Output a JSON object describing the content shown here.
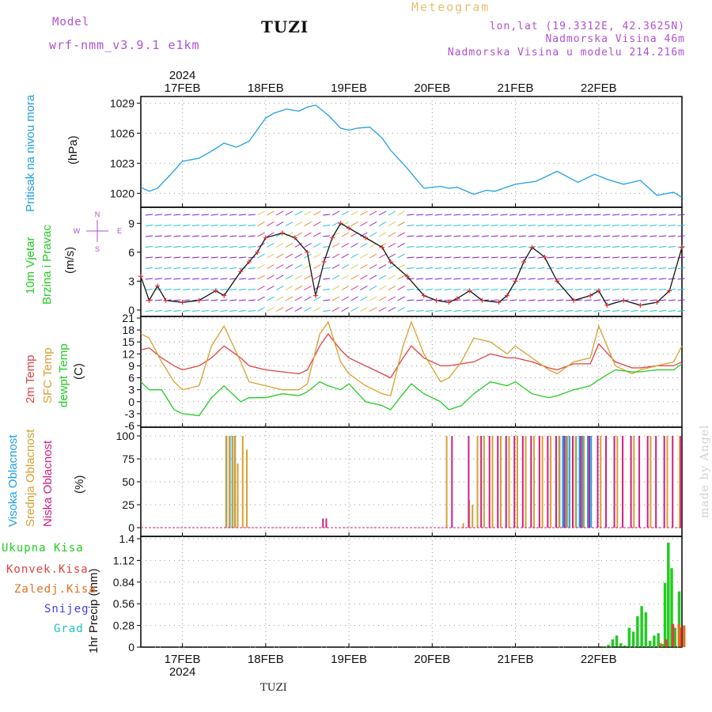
{
  "header": {
    "model_label": "Model",
    "model_name": "wrf-nmm_v3.9.1 e1km",
    "station": "TUZI",
    "title": "Meteogram",
    "coords": "lon,lat (19.3312E, 42.3625N)",
    "elevation": "Nadmorska Visina 46m",
    "model_elevation": "Nadmorska Visina u modelu 214.216m",
    "credit": "made by Angel",
    "footer_station": "TUZI"
  },
  "colors": {
    "pressure": "#1ea0e6",
    "wind_speed": "#111111",
    "wind_marker": "#e03030",
    "t2m": "#e04040",
    "tsfc": "#d8a030",
    "dewpoint": "#22cc22",
    "cloud_high": "#1ea0e6",
    "cloud_mid": "#d8a030",
    "cloud_low": "#d02080",
    "precip_total": "#22cc22",
    "precip_conv": "#e04040",
    "precip_frozen": "#e07020",
    "snow": "#4040e0",
    "graupel": "#20c0c0",
    "grid": "#999999"
  },
  "chart_data": [
    {
      "type": "line",
      "ylabel_lines": [
        "Pritisak na nivou mora",
        "(hPa)"
      ],
      "ylim": [
        1019,
        1029.5
      ],
      "yticks": [
        "1020",
        "1023",
        "1026",
        "1029"
      ],
      "grid": true,
      "series": [
        {
          "name": "Pritisak na nivou mora",
          "x": [
            0,
            0.1,
            0.2,
            0.35,
            0.5,
            0.7,
            0.85,
            1.0,
            1.15,
            1.3,
            1.5,
            1.6,
            1.75,
            1.9,
            2.0,
            2.1,
            2.25,
            2.4,
            2.5,
            2.6,
            2.75,
            2.9,
            3.0,
            3.2,
            3.4,
            3.6,
            3.7,
            3.8,
            4.0,
            4.15,
            4.25,
            4.5,
            4.75,
            5.0,
            5.25,
            5.45,
            5.6,
            5.8,
            6.0,
            6.2,
            6.4,
            6.5
          ],
          "values": [
            1020.6,
            1020.2,
            1020.5,
            1021.8,
            1023.2,
            1023.5,
            1024.2,
            1025.0,
            1024.6,
            1025.2,
            1027.5,
            1028.0,
            1028.4,
            1028.2,
            1028.6,
            1028.8,
            1027.8,
            1026.5,
            1026.3,
            1026.5,
            1026.6,
            1025.5,
            1024.3,
            1022.5,
            1020.5,
            1020.7,
            1020.5,
            1020.6,
            1019.9,
            1020.3,
            1020.2,
            1020.9,
            1021.2,
            1022.2,
            1021.1,
            1021.9,
            1021.4,
            1020.9,
            1021.3,
            1019.8,
            1020.1,
            1019.6
          ]
        }
      ]
    },
    {
      "type": "line",
      "ylabel_lines": [
        "10m Vjetar",
        "Brzina i Pravac",
        "(m/s)"
      ],
      "ylim": [
        -0.5,
        10.5
      ],
      "yticks": [
        "0",
        "3",
        "6",
        "9"
      ],
      "compass": {
        "n": "N",
        "e": "E",
        "w": "W",
        "s": "S"
      },
      "grid": true,
      "series": [
        {
          "name": "10m Vjetar Brzina",
          "x": [
            0,
            0.1,
            0.2,
            0.3,
            0.5,
            0.7,
            0.9,
            1.0,
            1.2,
            1.3,
            1.4,
            1.5,
            1.7,
            1.85,
            2.0,
            2.1,
            2.2,
            2.3,
            2.4,
            2.5,
            2.7,
            2.9,
            3.0,
            3.2,
            3.4,
            3.55,
            3.7,
            3.8,
            3.95,
            4.1,
            4.3,
            4.4,
            4.5,
            4.6,
            4.7,
            4.85,
            5.0,
            5.2,
            5.4,
            5.5,
            5.6,
            5.8,
            6.0,
            6.2,
            6.35,
            6.5
          ],
          "values": [
            3.5,
            1.0,
            2.5,
            1.0,
            0.8,
            1.0,
            2.0,
            1.5,
            4.0,
            5.0,
            6.0,
            7.5,
            8.0,
            7.5,
            6.0,
            1.5,
            5.0,
            7.5,
            9.0,
            8.5,
            7.5,
            6.5,
            5.0,
            3.5,
            1.5,
            1.0,
            0.8,
            1.2,
            2.0,
            1.0,
            0.8,
            1.5,
            3.0,
            5.0,
            6.5,
            5.5,
            3.0,
            1.0,
            1.5,
            2.0,
            0.5,
            1.0,
            0.5,
            0.8,
            2.0,
            6.5
          ]
        }
      ]
    },
    {
      "type": "line",
      "ylabel_lines": [
        "2m Temp",
        "SFC Temp",
        "dewpt Temp",
        "(C)"
      ],
      "ylim": [
        -6,
        21
      ],
      "yticks": [
        "-6",
        "-3",
        "0",
        "3",
        "6",
        "9",
        "12",
        "15",
        "18",
        "21"
      ],
      "grid": true,
      "series": [
        {
          "name": "2m Temp",
          "x": [
            0,
            0.1,
            0.25,
            0.4,
            0.5,
            0.7,
            0.85,
            1.0,
            1.2,
            1.3,
            1.5,
            1.7,
            1.9,
            2.0,
            2.15,
            2.25,
            2.4,
            2.5,
            2.7,
            2.9,
            3.0,
            3.15,
            3.25,
            3.4,
            3.6,
            3.7,
            3.85,
            4.0,
            4.2,
            4.4,
            4.5,
            4.7,
            4.9,
            5.0,
            5.2,
            5.4,
            5.5,
            5.7,
            5.9,
            6.0,
            6.2,
            6.4,
            6.5
          ],
          "values": [
            13.0,
            13.5,
            11.0,
            9.0,
            8.0,
            9.0,
            11.0,
            14.0,
            11.0,
            9.0,
            8.0,
            7.5,
            7.0,
            8.0,
            14.0,
            17.0,
            13.0,
            11.0,
            9.0,
            7.0,
            6.0,
            11.0,
            14.0,
            11.0,
            9.0,
            9.0,
            9.5,
            10.0,
            12.0,
            11.0,
            11.0,
            10.0,
            8.5,
            8.0,
            9.5,
            9.5,
            14.5,
            10.0,
            8.5,
            8.5,
            9.0,
            9.0,
            10.0
          ]
        },
        {
          "name": "SFC Temp",
          "x": [
            0,
            0.1,
            0.25,
            0.4,
            0.5,
            0.7,
            0.85,
            1.0,
            1.2,
            1.3,
            1.5,
            1.7,
            1.9,
            2.0,
            2.15,
            2.25,
            2.4,
            2.5,
            2.7,
            2.9,
            3.0,
            3.15,
            3.25,
            3.4,
            3.6,
            3.7,
            3.85,
            4.0,
            4.2,
            4.4,
            4.5,
            4.7,
            4.9,
            5.0,
            5.2,
            5.4,
            5.5,
            5.7,
            5.9,
            6.0,
            6.2,
            6.4,
            6.5
          ],
          "values": [
            17.0,
            16.0,
            10.0,
            5.0,
            3.0,
            4.0,
            14.0,
            19.0,
            10.0,
            5.0,
            4.0,
            3.0,
            3.0,
            4.5,
            17.0,
            20.0,
            10.0,
            7.0,
            4.0,
            2.0,
            1.5,
            14.0,
            20.0,
            12.0,
            5.0,
            6.0,
            10.0,
            16.0,
            15.0,
            12.0,
            14.0,
            11.0,
            8.0,
            7.0,
            10.0,
            11.0,
            19.0,
            9.0,
            7.0,
            8.0,
            9.0,
            10.0,
            14.0
          ]
        },
        {
          "name": "dewpt Temp",
          "x": [
            0,
            0.1,
            0.25,
            0.4,
            0.5,
            0.7,
            0.85,
            1.0,
            1.2,
            1.3,
            1.5,
            1.7,
            1.9,
            2.0,
            2.15,
            2.25,
            2.4,
            2.5,
            2.7,
            2.9,
            3.0,
            3.15,
            3.25,
            3.4,
            3.6,
            3.7,
            3.85,
            4.0,
            4.2,
            4.4,
            4.5,
            4.7,
            4.9,
            5.0,
            5.2,
            5.4,
            5.5,
            5.7,
            5.9,
            6.0,
            6.2,
            6.4,
            6.5
          ],
          "values": [
            5.0,
            3.0,
            3.0,
            -2.0,
            -3.0,
            -3.5,
            1.0,
            4.0,
            0.0,
            1.0,
            1.0,
            2.0,
            1.5,
            2.5,
            5.0,
            4.0,
            3.0,
            4.5,
            0.0,
            -1.0,
            -2.0,
            2.0,
            4.5,
            2.0,
            0.0,
            -2.0,
            -1.0,
            2.0,
            5.0,
            4.0,
            5.0,
            2.0,
            1.0,
            1.5,
            3.0,
            4.0,
            5.5,
            8.0,
            7.5,
            7.5,
            8.0,
            8.0,
            9.5
          ]
        }
      ]
    },
    {
      "type": "bar",
      "ylabel_lines": [
        "Visoka Oblacnost",
        "Srednja Oblacnost",
        "Niska Oblacnost",
        "(%)"
      ],
      "ylim": [
        0,
        100
      ],
      "yticks": [
        "0",
        "25",
        "50",
        "75",
        "100"
      ],
      "grid": true,
      "series": [
        {
          "name": "Visoka Oblacnost",
          "x": [
            1.02,
            1.06,
            1.09,
            1.12,
            4.98,
            5.02,
            5.06,
            5.1,
            5.14,
            5.18,
            5.22,
            5.26,
            5.3,
            5.36,
            5.4
          ],
          "values": [
            100,
            100,
            100,
            100,
            100,
            100,
            100,
            100,
            100,
            100,
            100,
            100,
            100,
            100,
            100
          ]
        },
        {
          "name": "Srednja Oblacnost",
          "x": [
            1.0,
            1.04,
            1.08,
            1.11,
            1.14,
            1.2,
            1.25,
            3.65,
            3.85,
            3.92,
            3.96,
            4.02,
            4.1,
            4.2,
            4.3,
            4.4,
            4.5,
            4.6,
            4.7,
            4.8,
            4.9,
            5.0,
            5.1,
            5.2,
            5.3,
            5.5,
            5.7,
            5.9,
            6.1,
            6.3,
            6.45
          ],
          "values": [
            100,
            100,
            100,
            100,
            70,
            100,
            85,
            100,
            5,
            30,
            25,
            100,
            100,
            100,
            100,
            100,
            100,
            100,
            100,
            100,
            100,
            100,
            100,
            100,
            100,
            100,
            100,
            100,
            100,
            100,
            100
          ]
        },
        {
          "name": "Niska Oblacnost",
          "x": [
            2.15,
            2.19,
            3.7,
            3.9,
            4.05,
            4.15,
            4.25,
            4.35,
            4.45,
            4.55,
            4.65,
            4.75,
            4.85,
            4.95,
            5.05,
            5.15,
            5.25,
            5.35,
            5.45,
            5.55,
            5.65,
            5.75,
            5.85,
            5.95,
            6.05,
            6.15,
            6.25,
            6.35,
            6.45
          ],
          "values": [
            10,
            10,
            100,
            100,
            100,
            100,
            100,
            100,
            100,
            100,
            100,
            100,
            100,
            100,
            100,
            100,
            100,
            100,
            100,
            100,
            100,
            100,
            100,
            100,
            100,
            100,
            100,
            100,
            100
          ]
        }
      ]
    },
    {
      "type": "bar",
      "ylabel_lines": [
        "1hr Precip (mm)"
      ],
      "ylim": [
        0,
        1.4
      ],
      "yticks": [
        "0",
        "0.28",
        "0.56",
        "0.84",
        "1.12",
        "1.4"
      ],
      "legend": [
        "Ukupna Kisa",
        "Konvek.Kisa",
        "Zaledj.Kisa",
        "Snijeg",
        "Grad"
      ],
      "grid": true,
      "series": [
        {
          "name": "Ukupna Kisa",
          "x": [
            5.55,
            5.6,
            5.65,
            5.7,
            5.75,
            5.8,
            5.85,
            5.9,
            5.95,
            6.0,
            6.05,
            6.1,
            6.15,
            6.2,
            6.25,
            6.28,
            6.32,
            6.36,
            6.4,
            6.45
          ],
          "values": [
            0.01,
            0.03,
            0.1,
            0.15,
            0.05,
            0.02,
            0.25,
            0.2,
            0.4,
            0.53,
            0.45,
            0.08,
            0.15,
            0.18,
            0.04,
            0.83,
            1.35,
            1.02,
            0.25,
            0.72
          ]
        },
        {
          "name": "Konvek.Kisa",
          "x": [
            6.28,
            6.36,
            6.45
          ],
          "values": [
            0.1,
            0.3,
            0.25
          ]
        },
        {
          "name": "Zaledj.Kisa",
          "x": [
            6.2,
            6.42,
            6.48
          ],
          "values": [
            0.05,
            0.3,
            0.28
          ]
        }
      ]
    }
  ],
  "time_axis": {
    "year_label": "2024",
    "days": [
      "17FEB",
      "18FEB",
      "19FEB",
      "20FEB",
      "21FEB",
      "22FEB"
    ],
    "xlim": [
      0,
      6.5
    ]
  }
}
